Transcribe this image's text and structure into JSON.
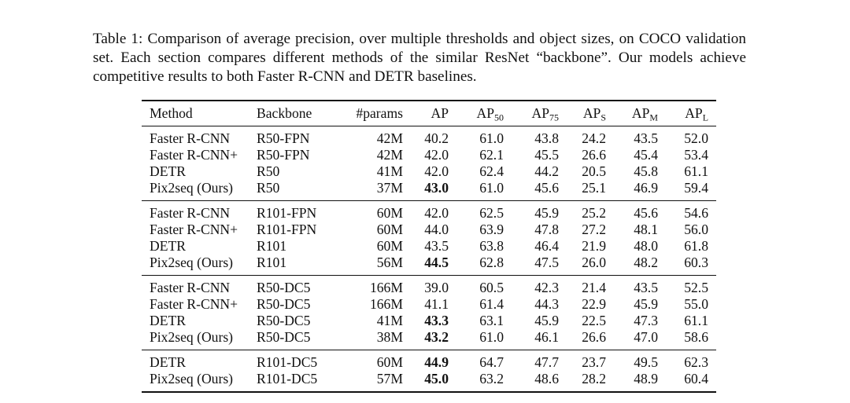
{
  "caption": "Table 1: Comparison of average precision, over multiple thresholds and object sizes, on COCO validation set. Each section compares different methods of the similar ResNet “backbone”. Our models achieve competitive results to both Faster R-CNN and DETR baselines.",
  "table": {
    "headers": {
      "method": "Method",
      "backbone": "Backbone",
      "params": "#params",
      "ap": "AP",
      "ap50_base": "AP",
      "ap50_sub": "50",
      "ap75_base": "AP",
      "ap75_sub": "75",
      "aps_base": "AP",
      "aps_sub": "S",
      "apm_base": "AP",
      "apm_sub": "M",
      "apl_base": "AP",
      "apl_sub": "L"
    },
    "sections": [
      [
        {
          "method": "Faster R-CNN",
          "backbone": "R50-FPN",
          "params": "42M",
          "ap": "40.2",
          "ap50": "61.0",
          "ap75": "43.8",
          "aps": "24.2",
          "apm": "43.5",
          "apl": "52.0",
          "ap_bold": false
        },
        {
          "method": "Faster R-CNN+",
          "backbone": "R50-FPN",
          "params": "42M",
          "ap": "42.0",
          "ap50": "62.1",
          "ap75": "45.5",
          "aps": "26.6",
          "apm": "45.4",
          "apl": "53.4",
          "ap_bold": false
        },
        {
          "method": "DETR",
          "backbone": "R50",
          "params": "41M",
          "ap": "42.0",
          "ap50": "62.4",
          "ap75": "44.2",
          "aps": "20.5",
          "apm": "45.8",
          "apl": "61.1",
          "ap_bold": false
        },
        {
          "method": "Pix2seq (Ours)",
          "backbone": "R50",
          "params": "37M",
          "ap": "43.0",
          "ap50": "61.0",
          "ap75": "45.6",
          "aps": "25.1",
          "apm": "46.9",
          "apl": "59.4",
          "ap_bold": true
        }
      ],
      [
        {
          "method": "Faster R-CNN",
          "backbone": "R101-FPN",
          "params": "60M",
          "ap": "42.0",
          "ap50": "62.5",
          "ap75": "45.9",
          "aps": "25.2",
          "apm": "45.6",
          "apl": "54.6",
          "ap_bold": false
        },
        {
          "method": "Faster R-CNN+",
          "backbone": "R101-FPN",
          "params": "60M",
          "ap": "44.0",
          "ap50": "63.9",
          "ap75": "47.8",
          "aps": "27.2",
          "apm": "48.1",
          "apl": "56.0",
          "ap_bold": false
        },
        {
          "method": "DETR",
          "backbone": "R101",
          "params": "60M",
          "ap": "43.5",
          "ap50": "63.8",
          "ap75": "46.4",
          "aps": "21.9",
          "apm": "48.0",
          "apl": "61.8",
          "ap_bold": false
        },
        {
          "method": "Pix2seq (Ours)",
          "backbone": "R101",
          "params": "56M",
          "ap": "44.5",
          "ap50": "62.8",
          "ap75": "47.5",
          "aps": "26.0",
          "apm": "48.2",
          "apl": "60.3",
          "ap_bold": true
        }
      ],
      [
        {
          "method": "Faster R-CNN",
          "backbone": "R50-DC5",
          "params": "166M",
          "ap": "39.0",
          "ap50": "60.5",
          "ap75": "42.3",
          "aps": "21.4",
          "apm": "43.5",
          "apl": "52.5",
          "ap_bold": false
        },
        {
          "method": "Faster R-CNN+",
          "backbone": "R50-DC5",
          "params": "166M",
          "ap": "41.1",
          "ap50": "61.4",
          "ap75": "44.3",
          "aps": "22.9",
          "apm": "45.9",
          "apl": "55.0",
          "ap_bold": false
        },
        {
          "method": "DETR",
          "backbone": "R50-DC5",
          "params": "41M",
          "ap": "43.3",
          "ap50": "63.1",
          "ap75": "45.9",
          "aps": "22.5",
          "apm": "47.3",
          "apl": "61.1",
          "ap_bold": true
        },
        {
          "method": "Pix2seq (Ours)",
          "backbone": "R50-DC5",
          "params": "38M",
          "ap": "43.2",
          "ap50": "61.0",
          "ap75": "46.1",
          "aps": "26.6",
          "apm": "47.0",
          "apl": "58.6",
          "ap_bold": true
        }
      ],
      [
        {
          "method": "DETR",
          "backbone": "R101-DC5",
          "params": "60M",
          "ap": "44.9",
          "ap50": "64.7",
          "ap75": "47.7",
          "aps": "23.7",
          "apm": "49.5",
          "apl": "62.3",
          "ap_bold": true
        },
        {
          "method": "Pix2seq (Ours)",
          "backbone": "R101-DC5",
          "params": "57M",
          "ap": "45.0",
          "ap50": "63.2",
          "ap75": "48.6",
          "aps": "28.2",
          "apm": "48.9",
          "apl": "60.4",
          "ap_bold": true
        }
      ]
    ]
  }
}
